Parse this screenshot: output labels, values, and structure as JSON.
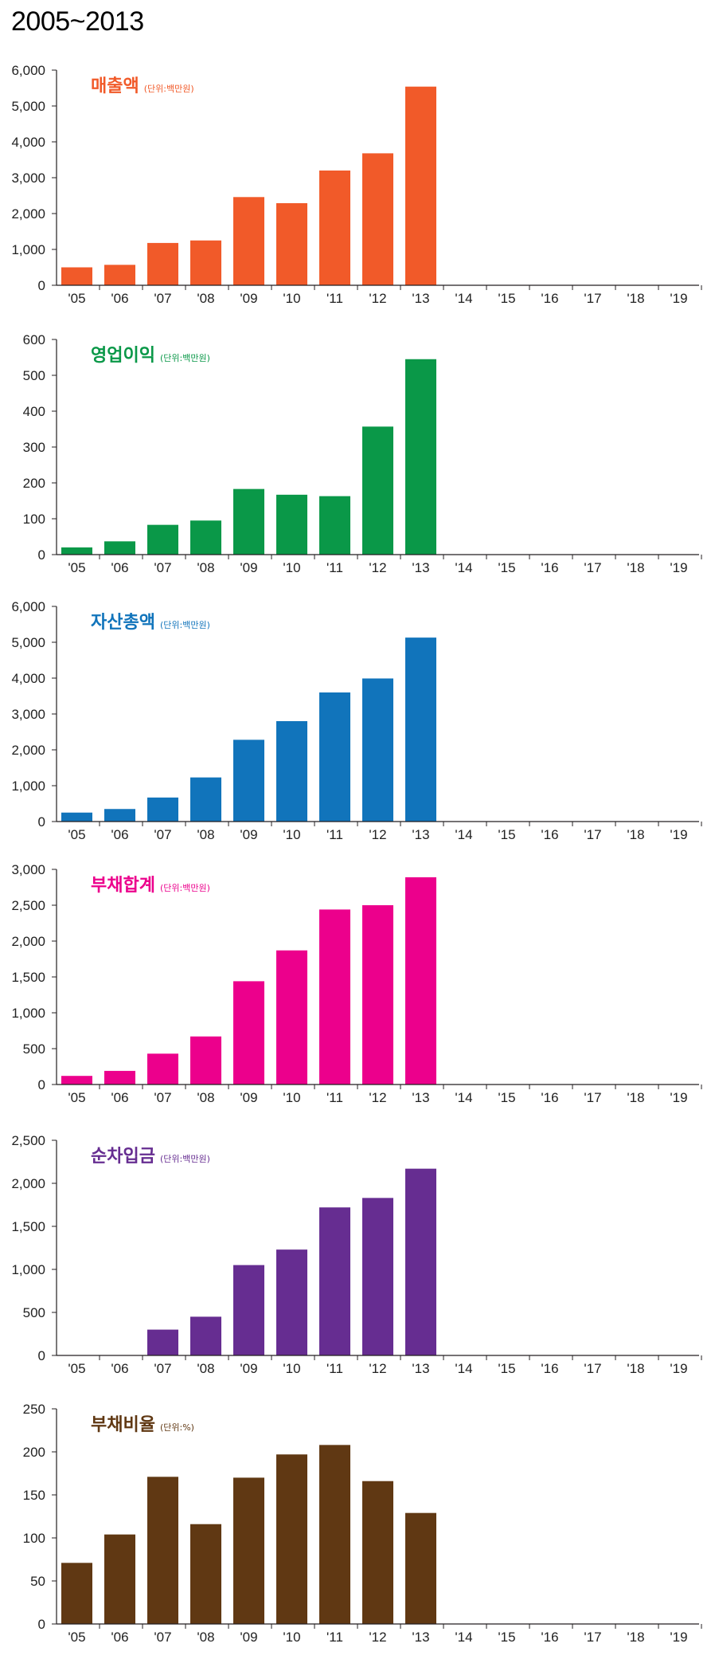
{
  "page": {
    "title": "2005~2013"
  },
  "categories": [
    "'05",
    "'06",
    "'07",
    "'08",
    "'09",
    "'10",
    "'11",
    "'12",
    "'13",
    "'14",
    "'15",
    "'16",
    "'17",
    "'18",
    "'19"
  ],
  "chart_data": [
    {
      "type": "bar",
      "title": "매출액",
      "unit": "(단위:백만원)",
      "color": "#f15a29",
      "ylim": [
        0,
        6000
      ],
      "yticks": [
        "0",
        "1,000",
        "2,000",
        "3,000",
        "4,000",
        "5,000",
        "6,000"
      ],
      "categories": [
        "'05",
        "'06",
        "'07",
        "'08",
        "'09",
        "'10",
        "'11",
        "'12",
        "'13",
        "'14",
        "'15",
        "'16",
        "'17",
        "'18",
        "'19"
      ],
      "values": [
        500,
        570,
        1180,
        1250,
        2460,
        2290,
        3200,
        3680,
        5540,
        null,
        null,
        null,
        null,
        null,
        null
      ]
    },
    {
      "type": "bar",
      "title": "영업이익",
      "unit": "(단위:백만원)",
      "color": "#0a9848",
      "ylim": [
        0,
        600
      ],
      "yticks": [
        "0",
        "100",
        "200",
        "300",
        "400",
        "500",
        "600"
      ],
      "categories": [
        "'05",
        "'06",
        "'07",
        "'08",
        "'09",
        "'10",
        "'11",
        "'12",
        "'13",
        "'14",
        "'15",
        "'16",
        "'17",
        "'18",
        "'19"
      ],
      "values": [
        20,
        37,
        83,
        95,
        183,
        167,
        163,
        357,
        545,
        null,
        null,
        null,
        null,
        null,
        null
      ]
    },
    {
      "type": "bar",
      "title": "자산총액",
      "unit": "(단위:백만원)",
      "color": "#1174bb",
      "ylim": [
        0,
        6000
      ],
      "yticks": [
        "0",
        "1,000",
        "2,000",
        "3,000",
        "4,000",
        "5,000",
        "6,000"
      ],
      "categories": [
        "'05",
        "'06",
        "'07",
        "'08",
        "'09",
        "'10",
        "'11",
        "'12",
        "'13",
        "'14",
        "'15",
        "'16",
        "'17",
        "'18",
        "'19"
      ],
      "values": [
        250,
        350,
        670,
        1230,
        2280,
        2800,
        3600,
        3990,
        5130,
        null,
        null,
        null,
        null,
        null,
        null
      ]
    },
    {
      "type": "bar",
      "title": "부채합계",
      "unit": "(단위:백만원)",
      "color": "#ec008c",
      "ylim": [
        0,
        3000
      ],
      "yticks": [
        "0",
        "500",
        "1,000",
        "1,500",
        "2,000",
        "2,500",
        "3,000"
      ],
      "categories": [
        "'05",
        "'06",
        "'07",
        "'08",
        "'09",
        "'10",
        "'11",
        "'12",
        "'13",
        "'14",
        "'15",
        "'16",
        "'17",
        "'18",
        "'19"
      ],
      "values": [
        120,
        190,
        430,
        670,
        1440,
        1870,
        2440,
        2500,
        2890,
        null,
        null,
        null,
        null,
        null,
        null
      ]
    },
    {
      "type": "bar",
      "title": "순차입금",
      "unit": "(단위:백만원)",
      "color": "#662d91",
      "ylim": [
        0,
        2500
      ],
      "yticks": [
        "0",
        "500",
        "1,000",
        "1,500",
        "2,000",
        "2,500"
      ],
      "categories": [
        "'05",
        "'06",
        "'07",
        "'08",
        "'09",
        "'10",
        "'11",
        "'12",
        "'13",
        "'14",
        "'15",
        "'16",
        "'17",
        "'18",
        "'19"
      ],
      "values": [
        null,
        null,
        300,
        450,
        1050,
        1230,
        1720,
        1830,
        2170,
        null,
        null,
        null,
        null,
        null,
        null
      ]
    },
    {
      "type": "bar",
      "title": "부채비율",
      "unit": "(단위:%)",
      "color": "#603813",
      "ylim": [
        0,
        250
      ],
      "yticks": [
        "0",
        "50",
        "100",
        "150",
        "200",
        "250"
      ],
      "categories": [
        "'05",
        "'06",
        "'07",
        "'08",
        "'09",
        "'10",
        "'11",
        "'12",
        "'13",
        "'14",
        "'15",
        "'16",
        "'17",
        "'18",
        "'19"
      ],
      "values": [
        71,
        104,
        171,
        116,
        170,
        197,
        208,
        166,
        129,
        null,
        null,
        null,
        null,
        null,
        null
      ]
    }
  ]
}
